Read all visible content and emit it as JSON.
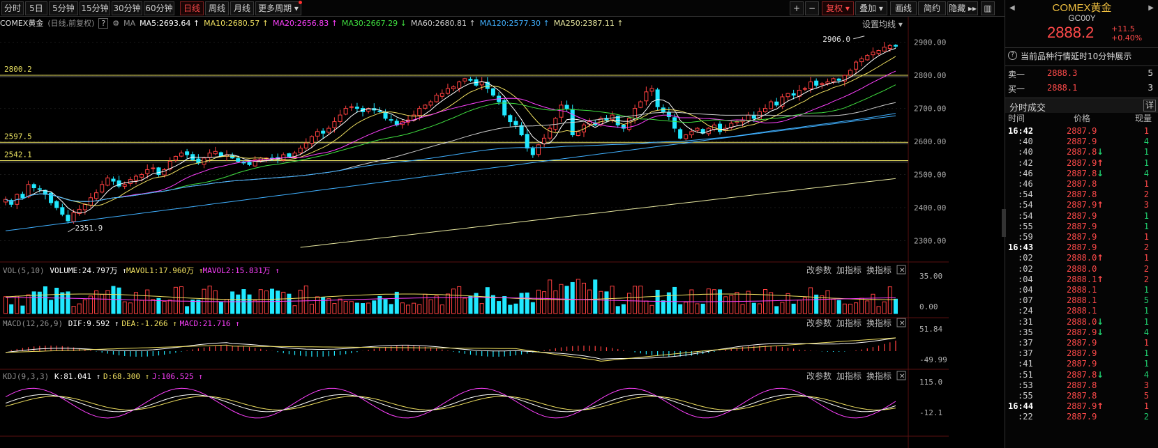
{
  "toolbar": {
    "periods": [
      "分时",
      "5日",
      "5分钟",
      "15分钟",
      "30分钟",
      "60分钟",
      "日线",
      "周线",
      "月线",
      "更多周期"
    ],
    "active_period": "日线",
    "right_buttons": [
      "复权",
      "叠加",
      "画线",
      "简约",
      "隐藏"
    ],
    "plus": "+",
    "minus": "−"
  },
  "header": {
    "symbol": "COMEX黄金",
    "mode": "(日线,前复权)",
    "help": "?",
    "ma_label": "MA",
    "ma_items": [
      {
        "text": "MA5:2693.64",
        "arrow": "↑",
        "color": "#ffffff"
      },
      {
        "text": "MA10:2680.57",
        "arrow": "↑",
        "color": "#f0e060"
      },
      {
        "text": "MA20:2656.83",
        "arrow": "↑",
        "color": "#ff40ff"
      },
      {
        "text": "MA30:2667.29",
        "arrow": "↓",
        "color": "#40e040"
      },
      {
        "text": "MA60:2680.81",
        "arrow": "↑",
        "color": "#d0d0d0"
      },
      {
        "text": "MA120:2577.30",
        "arrow": "↑",
        "color": "#40b0ff"
      },
      {
        "text": "MA250:2387.11",
        "arrow": "↑",
        "color": "#e8e8a0"
      }
    ],
    "settings": "设置均线"
  },
  "price_panel": {
    "axis_labels": [
      "2900.00",
      "2800.00",
      "2700.00",
      "2600.00",
      "2500.00",
      "2400.00",
      "2300.00"
    ],
    "hlines": [
      {
        "label": "2800.2",
        "value": 2800.2
      },
      {
        "label": "2597.5",
        "value": 2597.5
      },
      {
        "label": "2542.1",
        "value": 2542.1
      }
    ],
    "high_label": "2906.0",
    "low_label": "2351.9"
  },
  "vol_panel": {
    "title": "VOL(5,10)",
    "items": [
      {
        "text": "VOLUME:24.797万",
        "arrow": "↑",
        "color": "#ffffff"
      },
      {
        "text": "MAVOL1:17.960万",
        "arrow": "↑",
        "color": "#f0e060"
      },
      {
        "text": "MAVOL2:15.831万",
        "arrow": "↑",
        "color": "#ff40ff"
      }
    ],
    "axis_labels": [
      "35.00",
      "0.00"
    ],
    "actions": [
      "改参数",
      "加指标",
      "换指标"
    ],
    "close": "✕"
  },
  "macd_panel": {
    "title": "MACD(12,26,9)",
    "items": [
      {
        "text": "DIF:9.592",
        "arrow": "↑",
        "color": "#ffffff"
      },
      {
        "text": "DEA:-1.266",
        "arrow": "↑",
        "color": "#f0e060"
      },
      {
        "text": "MACD:21.716",
        "arrow": "↑",
        "color": "#ff40ff"
      }
    ],
    "axis_labels": [
      "51.84",
      "-49.99"
    ],
    "actions": [
      "改参数",
      "加指标",
      "换指标"
    ],
    "close": "✕"
  },
  "kdj_panel": {
    "title": "KDJ(9,3,3)",
    "items": [
      {
        "text": "K:81.041",
        "arrow": "↑",
        "color": "#ffffff"
      },
      {
        "text": "D:68.300",
        "arrow": "↑",
        "color": "#f0e060"
      },
      {
        "text": "J:106.525",
        "arrow": "↑",
        "color": "#ff40ff"
      }
    ],
    "axis_labels": [
      "115.0",
      "-12.1"
    ],
    "actions": [
      "改参数",
      "加指标",
      "换指标"
    ],
    "close": "✕"
  },
  "quote": {
    "name": "COMEX黄金",
    "code": "GC00Y",
    "price": "2888.2",
    "change": "+11.5",
    "change_pct": "+0.40%",
    "notice": "当前品种行情延时10分钟展示",
    "sell_label": "卖一",
    "sell_price": "2888.3",
    "sell_vol": "5",
    "buy_label": "买一",
    "buy_price": "2888.1",
    "buy_vol": "3",
    "trades_title": "分时成交",
    "detail": "详",
    "col_time": "时间",
    "col_price": "价格",
    "col_vol": "现量"
  },
  "trades": [
    {
      "time": "16:42",
      "price": "2887.9",
      "arrow": "",
      "vol": "1",
      "dir": "up",
      "bold": true
    },
    {
      "time": ":40",
      "price": "2887.9",
      "arrow": "",
      "vol": "4",
      "dir": "dn"
    },
    {
      "time": ":40",
      "price": "2887.8",
      "arrow": "↓",
      "vol": "1",
      "dir": "dn"
    },
    {
      "time": ":42",
      "price": "2887.9",
      "arrow": "↑",
      "vol": "1",
      "dir": "dn"
    },
    {
      "time": ":46",
      "price": "2887.8",
      "arrow": "↓",
      "vol": "4",
      "dir": "dn"
    },
    {
      "time": ":46",
      "price": "2887.8",
      "arrow": "",
      "vol": "1",
      "dir": "up"
    },
    {
      "time": ":54",
      "price": "2887.8",
      "arrow": "",
      "vol": "2",
      "dir": "up"
    },
    {
      "time": ":54",
      "price": "2887.9",
      "arrow": "↑",
      "vol": "3",
      "dir": "up"
    },
    {
      "time": ":54",
      "price": "2887.9",
      "arrow": "",
      "vol": "1",
      "dir": "dn"
    },
    {
      "time": ":55",
      "price": "2887.9",
      "arrow": "",
      "vol": "1",
      "dir": "dn"
    },
    {
      "time": ":59",
      "price": "2887.9",
      "arrow": "",
      "vol": "1",
      "dir": "up"
    },
    {
      "time": "16:43",
      "price": "2887.9",
      "arrow": "",
      "vol": "2",
      "dir": "up",
      "bold": true
    },
    {
      "time": ":02",
      "price": "2888.0",
      "arrow": "↑",
      "vol": "1",
      "dir": "up"
    },
    {
      "time": ":02",
      "price": "2888.0",
      "arrow": "",
      "vol": "2",
      "dir": "up"
    },
    {
      "time": ":04",
      "price": "2888.1",
      "arrow": "↑",
      "vol": "2",
      "dir": "up"
    },
    {
      "time": ":04",
      "price": "2888.1",
      "arrow": "",
      "vol": "1",
      "dir": "dn"
    },
    {
      "time": ":07",
      "price": "2888.1",
      "arrow": "",
      "vol": "5",
      "dir": "dn"
    },
    {
      "time": ":24",
      "price": "2888.1",
      "arrow": "",
      "vol": "1",
      "dir": "dn"
    },
    {
      "time": ":31",
      "price": "2888.0",
      "arrow": "↓",
      "vol": "1",
      "dir": "dn"
    },
    {
      "time": ":35",
      "price": "2887.9",
      "arrow": "↓",
      "vol": "4",
      "dir": "dn"
    },
    {
      "time": ":37",
      "price": "2887.9",
      "arrow": "",
      "vol": "1",
      "dir": "up"
    },
    {
      "time": ":37",
      "price": "2887.9",
      "arrow": "",
      "vol": "1",
      "dir": "dn"
    },
    {
      "time": ":41",
      "price": "2887.9",
      "arrow": "",
      "vol": "1",
      "dir": "dn"
    },
    {
      "time": ":51",
      "price": "2887.8",
      "arrow": "↓",
      "vol": "4",
      "dir": "dn"
    },
    {
      "time": ":53",
      "price": "2887.8",
      "arrow": "",
      "vol": "3",
      "dir": "up"
    },
    {
      "time": ":55",
      "price": "2887.8",
      "arrow": "",
      "vol": "5",
      "dir": "up"
    },
    {
      "time": "16:44",
      "price": "2887.9",
      "arrow": "↑",
      "vol": "1",
      "dir": "up",
      "bold": true
    },
    {
      "time": ":22",
      "price": "2887.9",
      "arrow": "",
      "vol": "2",
      "dir": "dn"
    }
  ],
  "chart_data": {
    "type": "candlestick",
    "y_range_price": [
      2240,
      2935
    ],
    "closes": [
      2425,
      2410,
      2440,
      2430,
      2470,
      2460,
      2455,
      2440,
      2415,
      2400,
      2380,
      2360,
      2385,
      2395,
      2410,
      2430,
      2445,
      2470,
      2490,
      2480,
      2465,
      2470,
      2485,
      2495,
      2500,
      2515,
      2520,
      2500,
      2515,
      2540,
      2555,
      2565,
      2560,
      2545,
      2535,
      2550,
      2565,
      2570,
      2555,
      2560,
      2550,
      2540,
      2535,
      2530,
      2545,
      2550,
      2550,
      2548,
      2545,
      2560,
      2555,
      2565,
      2580,
      2595,
      2615,
      2630,
      2625,
      2640,
      2660,
      2680,
      2700,
      2705,
      2700,
      2690,
      2700,
      2695,
      2690,
      2670,
      2665,
      2650,
      2660,
      2665,
      2680,
      2700,
      2710,
      2720,
      2740,
      2745,
      2760,
      2765,
      2780,
      2790,
      2785,
      2770,
      2780,
      2760,
      2740,
      2720,
      2680,
      2660,
      2650,
      2620,
      2580,
      2560,
      2590,
      2610,
      2640,
      2670,
      2710,
      2700,
      2620,
      2630,
      2650,
      2660,
      2650,
      2670,
      2665,
      2680,
      2650,
      2640,
      2670,
      2700,
      2720,
      2750,
      2760,
      2705,
      2690,
      2675,
      2640,
      2610,
      2620,
      2630,
      2640,
      2625,
      2640,
      2650,
      2630,
      2640,
      2655,
      2660,
      2665,
      2680,
      2670,
      2690,
      2700,
      2720,
      2710,
      2735,
      2745,
      2740,
      2755,
      2760,
      2780,
      2770,
      2775,
      2780,
      2790,
      2785,
      2800,
      2815,
      2840,
      2850,
      2860,
      2870,
      2875,
      2885,
      2890,
      2888
    ],
    "ma_levels": {
      "MA5": 2693.64,
      "MA10": 2680.57,
      "MA20": 2656.83,
      "MA30": 2667.29,
      "MA60": 2680.81,
      "MA120": 2577.3,
      "MA250": 2387.11
    }
  }
}
